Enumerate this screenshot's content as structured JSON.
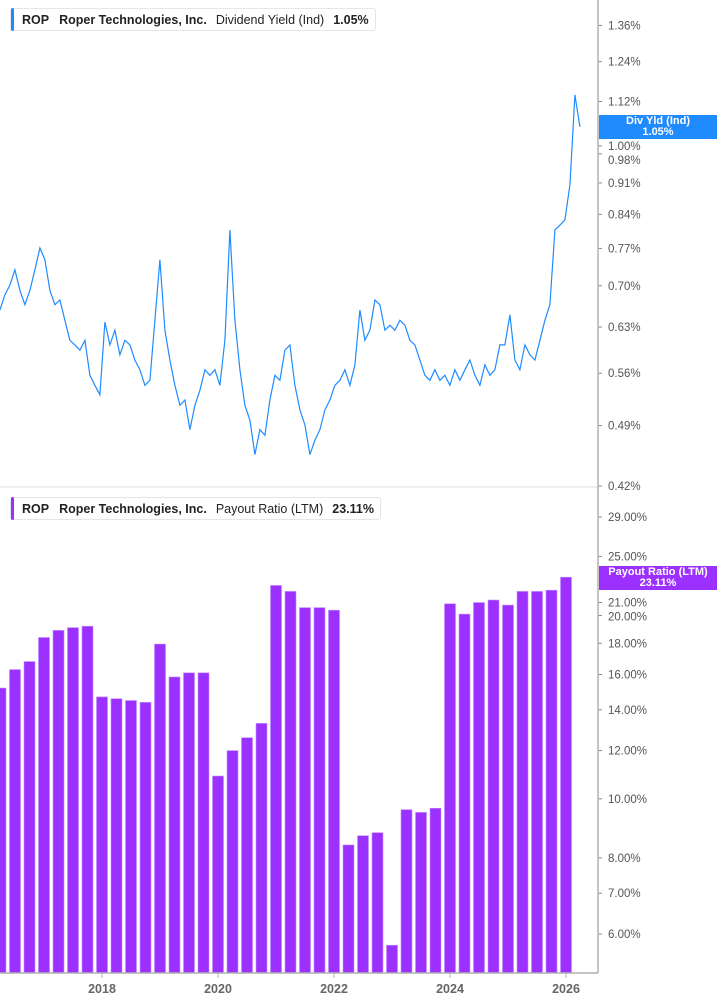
{
  "colors": {
    "yield": "#1f8bff",
    "payout": "#9b30ff",
    "axis": "#b0b0b0"
  },
  "top_legend": {
    "symbol": "ROP",
    "company": "Roper Technologies, Inc.",
    "metric": "Dividend Yield (Ind)",
    "value": "1.05%"
  },
  "bottom_legend": {
    "symbol": "ROP",
    "company": "Roper Technologies, Inc.",
    "metric": "Payout Ratio (LTM)",
    "value": "23.11%"
  },
  "top_flag": {
    "label": "Div Yld (Ind)",
    "value": "1.05%"
  },
  "bottom_flag": {
    "label": "Payout Ratio (LTM)",
    "value": "23.11%"
  },
  "chart_data": [
    {
      "type": "line",
      "title": "Dividend Yield (Ind)",
      "scale": "log",
      "ylim": [
        0.42,
        1.42
      ],
      "xlim": [
        2016.24,
        2026.5
      ],
      "start_year": 2016.24,
      "step_years": 0.0862,
      "y_ticks": [
        1.36,
        1.24,
        1.12,
        1.0,
        0.98,
        0.91,
        0.84,
        0.77,
        0.7,
        0.63,
        0.56,
        0.49,
        0.42
      ],
      "y_tick_labels": [
        "1.36%",
        "1.24%",
        "1.12%",
        "1.00%",
        "0.98%",
        "0.91%",
        "0.84%",
        "0.77%",
        "0.70%",
        "0.63%",
        "0.56%",
        "0.49%",
        "0.42%"
      ],
      "values": [
        0.658,
        0.684,
        0.701,
        0.729,
        0.692,
        0.667,
        0.692,
        0.729,
        0.771,
        0.748,
        0.692,
        0.667,
        0.675,
        0.641,
        0.609,
        0.602,
        0.594,
        0.609,
        0.557,
        0.543,
        0.53,
        0.638,
        0.602,
        0.625,
        0.587,
        0.609,
        0.602,
        0.579,
        0.565,
        0.543,
        0.55,
        0.641,
        0.748,
        0.625,
        0.579,
        0.543,
        0.516,
        0.523,
        0.485,
        0.516,
        0.536,
        0.565,
        0.557,
        0.565,
        0.543,
        0.609,
        0.807,
        0.641,
        0.565,
        0.516,
        0.497,
        0.455,
        0.485,
        0.478,
        0.523,
        0.557,
        0.55,
        0.594,
        0.602,
        0.543,
        0.51,
        0.491,
        0.455,
        0.472,
        0.485,
        0.51,
        0.523,
        0.543,
        0.55,
        0.565,
        0.543,
        0.572,
        0.658,
        0.609,
        0.625,
        0.675,
        0.667,
        0.625,
        0.633,
        0.625,
        0.641,
        0.633,
        0.609,
        0.602,
        0.579,
        0.557,
        0.55,
        0.565,
        0.55,
        0.557,
        0.543,
        0.565,
        0.55,
        0.565,
        0.579,
        0.557,
        0.543,
        0.572,
        0.557,
        0.565,
        0.602,
        0.602,
        0.65,
        0.579,
        0.565,
        0.602,
        0.587,
        0.579,
        0.609,
        0.641,
        0.667,
        0.807,
        0.817,
        0.828,
        0.905,
        1.139,
        1.05
      ]
    },
    {
      "type": "bar",
      "title": "Payout Ratio (LTM)",
      "scale": "log",
      "ylim": [
        5.2,
        33
      ],
      "start_year": 2016.25,
      "step_years": 0.25,
      "y_ticks": [
        29,
        25,
        21,
        20,
        18,
        16,
        14,
        12,
        10,
        8,
        7,
        6
      ],
      "y_tick_labels": [
        "29.00%",
        "25.00%",
        "21.00%",
        "20.00%",
        "18.00%",
        "16.00%",
        "14.00%",
        "12.00%",
        "10.00%",
        "8.00%",
        "7.00%",
        "6.00%"
      ],
      "x_ticks": [
        2018,
        2020,
        2022,
        2024,
        2026
      ],
      "x_tick_labels": [
        "2018",
        "2020",
        "2022",
        "2024",
        "2026"
      ],
      "values": [
        15.2,
        16.3,
        16.8,
        18.4,
        18.9,
        19.1,
        19.2,
        14.7,
        14.6,
        14.5,
        14.4,
        17.95,
        15.85,
        16.1,
        16.1,
        10.9,
        12.0,
        12.6,
        13.3,
        22.4,
        21.9,
        20.6,
        20.6,
        20.4,
        8.4,
        8.7,
        8.8,
        5.75,
        9.6,
        9.5,
        9.65,
        20.9,
        20.1,
        21.0,
        21.2,
        20.8,
        21.9,
        21.9,
        22.0,
        23.11
      ]
    }
  ]
}
